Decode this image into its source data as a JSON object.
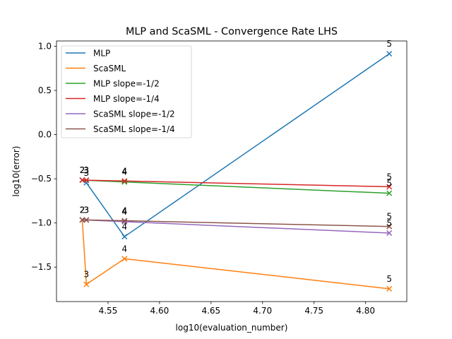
{
  "chart_data": {
    "type": "line",
    "title": "MLP and ScaSML - Convergence Rate LHS",
    "xlabel": "log10(evaluation_number)",
    "ylabel": "log10(error)",
    "xlim": [
      4.5,
      4.84
    ],
    "ylim": [
      -1.89,
      1.06
    ],
    "xticks": [
      4.55,
      4.6,
      4.65,
      4.7,
      4.75,
      4.8
    ],
    "xtick_labels": [
      "4.55",
      "4.60",
      "4.65",
      "4.70",
      "4.75",
      "4.80"
    ],
    "yticks": [
      -1.5,
      -1.0,
      -0.5,
      0.0,
      0.5,
      1.0
    ],
    "ytick_labels": [
      "−1.5",
      "−1.0",
      "−0.5",
      "0.0",
      "0.5",
      "1.0"
    ],
    "grid": false,
    "legend_position": "upper-left",
    "series": [
      {
        "name": "MLP",
        "color": "#1f77b4",
        "points": [
          {
            "x": 4.525,
            "y": -0.515,
            "label": "2"
          },
          {
            "x": 4.529,
            "y": -0.545,
            "label": "3"
          },
          {
            "x": 4.566,
            "y": -1.155,
            "label": "4"
          },
          {
            "x": 4.823,
            "y": 0.915,
            "label": "5"
          }
        ]
      },
      {
        "name": "ScaSML",
        "color": "#ff7f0e",
        "points": [
          {
            "x": 4.525,
            "y": -0.965,
            "label": "2"
          },
          {
            "x": 4.529,
            "y": -1.695,
            "label": "3"
          },
          {
            "x": 4.566,
            "y": -1.405,
            "label": "4"
          },
          {
            "x": 4.823,
            "y": -1.745,
            "label": "5"
          }
        ]
      },
      {
        "name": "MLP slope=-1/2",
        "color": "#2ca02c",
        "points": [
          {
            "x": 4.525,
            "y": -0.515,
            "label": "2"
          },
          {
            "x": 4.529,
            "y": -0.517,
            "label": "3"
          },
          {
            "x": 4.566,
            "y": -0.536,
            "label": "4"
          },
          {
            "x": 4.823,
            "y": -0.664,
            "label": "5"
          }
        ]
      },
      {
        "name": "MLP slope=-1/4",
        "color": "#d62728",
        "points": [
          {
            "x": 4.525,
            "y": -0.515,
            "label": "2"
          },
          {
            "x": 4.529,
            "y": -0.516,
            "label": "3"
          },
          {
            "x": 4.566,
            "y": -0.525,
            "label": "4"
          },
          {
            "x": 4.823,
            "y": -0.59,
            "label": "5"
          }
        ]
      },
      {
        "name": "ScaSML slope=-1/2",
        "color": "#9467bd",
        "points": [
          {
            "x": 4.525,
            "y": -0.965,
            "label": "2"
          },
          {
            "x": 4.529,
            "y": -0.967,
            "label": "3"
          },
          {
            "x": 4.566,
            "y": -0.986,
            "label": "4"
          },
          {
            "x": 4.823,
            "y": -1.114,
            "label": "5"
          }
        ]
      },
      {
        "name": "ScaSML slope=-1/4",
        "color": "#8c564b",
        "points": [
          {
            "x": 4.525,
            "y": -0.965,
            "label": "2"
          },
          {
            "x": 4.529,
            "y": -0.966,
            "label": "3"
          },
          {
            "x": 4.566,
            "y": -0.975,
            "label": "4"
          },
          {
            "x": 4.823,
            "y": -1.04,
            "label": "5"
          }
        ]
      }
    ]
  }
}
